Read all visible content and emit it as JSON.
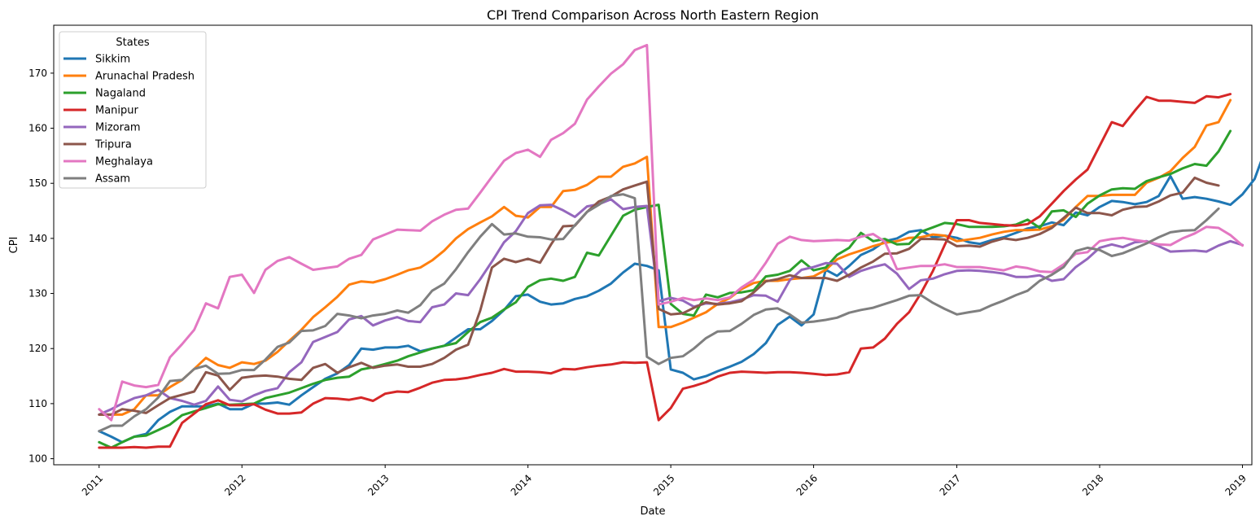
{
  "chart_data": {
    "type": "line",
    "title": "CPI Trend Comparison Across North Eastern Region",
    "xlabel": "Date",
    "ylabel": "CPI",
    "x_start": "2011-01",
    "x_frequency": "monthly",
    "xlim": [
      "2010-09-07",
      "2019-01-25"
    ],
    "ylim": [
      98.9,
      178.7
    ],
    "x_ticks": [
      "2011",
      "2012",
      "2013",
      "2014",
      "2015",
      "2016",
      "2017",
      "2018",
      "2019"
    ],
    "y_ticks": [
      100,
      110,
      120,
      130,
      140,
      150,
      160,
      170
    ],
    "grid": false,
    "legend": {
      "title": "States",
      "placement": "upper-left"
    },
    "series": [
      {
        "name": "Sikkim",
        "color": "#1f77b4",
        "values": [
          105.0,
          104.0,
          103.0,
          104.0,
          104.5,
          107.0,
          108.5,
          109.5,
          109.5,
          109.5,
          110.0,
          109.0,
          109.0,
          110.0,
          110.0,
          110.2,
          109.8,
          111.5,
          113.0,
          114.5,
          115.5,
          117.0,
          120.0,
          119.8,
          120.2,
          120.2,
          120.5,
          119.5,
          120.0,
          120.5,
          122.0,
          123.5,
          123.5,
          125.0,
          127.0,
          129.5,
          129.8,
          128.5,
          128.0,
          128.2,
          129.0,
          129.5,
          130.5,
          131.8,
          133.8,
          135.4,
          135.0,
          134.2,
          116.2,
          115.6,
          114.4,
          115.0,
          115.9,
          116.7,
          117.6,
          119.0,
          121.0,
          124.3,
          125.8,
          124.2,
          126.2,
          134.3,
          133.2,
          135.0,
          137.0,
          138.0,
          139.5,
          140.0,
          141.2,
          141.5,
          140.2,
          140.5,
          140.1,
          139.3,
          139.0,
          139.7,
          140.2,
          141.0,
          141.8,
          142.2,
          142.9,
          142.4,
          144.7,
          144.2,
          145.7,
          146.8,
          146.6,
          146.2,
          146.6,
          147.7,
          151.3,
          147.2,
          147.5,
          147.2,
          146.7,
          146.1,
          148.0,
          150.8,
          156.2
        ]
      },
      {
        "name": "Arunachal Pradesh",
        "color": "#ff7f0e",
        "values": [
          108.0,
          108.0,
          108.0,
          109.0,
          111.5,
          111.5,
          113.0,
          114.3,
          116.3,
          118.3,
          117.0,
          116.5,
          117.5,
          117.2,
          117.8,
          119.4,
          121.4,
          123.4,
          125.7,
          127.5,
          129.4,
          131.6,
          132.2,
          132.0,
          132.6,
          133.4,
          134.2,
          134.7,
          136.0,
          137.8,
          140.0,
          141.7,
          142.9,
          144.0,
          145.7,
          144.1,
          143.8,
          145.7,
          145.7,
          148.6,
          148.8,
          149.7,
          151.2,
          151.2,
          153.0,
          153.6,
          154.8,
          123.9,
          123.9,
          124.7,
          125.6,
          126.6,
          128.1,
          129.2,
          130.8,
          131.9,
          132.3,
          132.3,
          132.6,
          132.8,
          133.1,
          134.3,
          136.2,
          137.1,
          137.8,
          138.6,
          139.2,
          139.5,
          140.1,
          140.2,
          140.7,
          140.5,
          139.5,
          139.8,
          140.1,
          140.7,
          141.2,
          141.5,
          141.5,
          141.6,
          142.2,
          143.4,
          145.7,
          147.7,
          147.7,
          147.9,
          147.9,
          147.9,
          150.1,
          151.0,
          152.2,
          154.6,
          156.6,
          160.5,
          161.1,
          165.1
        ]
      },
      {
        "name": "Nagaland",
        "color": "#2ca02c",
        "values": [
          103.0,
          102.0,
          103.0,
          104.0,
          104.2,
          105.2,
          106.2,
          107.9,
          108.6,
          109.2,
          109.9,
          109.8,
          109.9,
          110.0,
          111.0,
          111.5,
          112.0,
          112.8,
          113.6,
          114.3,
          114.7,
          114.9,
          116.2,
          116.6,
          117.2,
          117.8,
          118.6,
          119.3,
          120.0,
          120.5,
          121.0,
          123.0,
          124.8,
          125.6,
          127.1,
          128.4,
          131.2,
          132.4,
          132.7,
          132.3,
          133.0,
          137.4,
          136.9,
          140.5,
          144.1,
          145.2,
          145.7,
          146.1,
          128.1,
          126.3,
          126.0,
          129.8,
          129.3,
          130.1,
          130.2,
          130.6,
          133.1,
          133.4,
          134.1,
          136.0,
          134.2,
          134.7,
          137.0,
          138.3,
          141.0,
          139.5,
          139.9,
          138.9,
          139.0,
          141.2,
          142.0,
          142.8,
          142.6,
          142.1,
          142.1,
          142.1,
          142.2,
          142.5,
          143.4,
          141.9,
          144.9,
          145.1,
          143.9,
          146.3,
          147.8,
          148.9,
          149.1,
          149.0,
          150.4,
          151.1,
          151.7,
          152.7,
          153.5,
          153.2,
          155.8,
          159.5
        ]
      },
      {
        "name": "Manipur",
        "color": "#d62728",
        "values": [
          102.0,
          102.0,
          102.0,
          102.1,
          102.0,
          102.2,
          102.2,
          106.5,
          108.2,
          109.9,
          110.6,
          109.7,
          109.7,
          109.9,
          108.9,
          108.2,
          108.2,
          108.4,
          110.0,
          111.0,
          110.9,
          110.7,
          111.1,
          110.5,
          111.8,
          112.2,
          112.1,
          112.9,
          113.8,
          114.3,
          114.4,
          114.7,
          115.2,
          115.6,
          116.3,
          115.8,
          115.8,
          115.7,
          115.5,
          116.3,
          116.2,
          116.6,
          116.9,
          117.1,
          117.5,
          117.4,
          117.5,
          107.0,
          109.2,
          112.7,
          113.2,
          113.9,
          114.9,
          115.6,
          115.8,
          115.7,
          115.6,
          115.7,
          115.7,
          115.6,
          115.4,
          115.2,
          115.3,
          115.7,
          120.0,
          120.2,
          121.8,
          124.5,
          126.6,
          130.0,
          134.1,
          138.8,
          143.3,
          143.3,
          142.8,
          142.6,
          142.4,
          142.3,
          142.6,
          144.0,
          146.3,
          148.6,
          150.7,
          152.5,
          156.8,
          161.1,
          160.4,
          163.2,
          165.7,
          165.0,
          165.0,
          164.8,
          164.6,
          165.8,
          165.6,
          166.2
        ]
      },
      {
        "name": "Mizoram",
        "color": "#9467bd",
        "values": [
          108.0,
          109.0,
          110.0,
          111.0,
          111.5,
          112.5,
          111.0,
          110.5,
          109.8,
          110.5,
          113.1,
          110.7,
          110.4,
          111.5,
          112.3,
          112.8,
          115.7,
          117.5,
          121.2,
          122.1,
          123.0,
          125.3,
          125.9,
          124.2,
          125.1,
          125.7,
          125.0,
          124.8,
          127.5,
          128.0,
          130.0,
          129.7,
          132.6,
          135.8,
          139.3,
          141.3,
          144.6,
          146.0,
          146.1,
          145.1,
          143.9,
          145.8,
          146.2,
          147.1,
          145.3,
          145.7,
          145.9,
          128.6,
          129.2,
          128.7,
          127.6,
          128.2,
          128.1,
          128.4,
          128.9,
          129.7,
          129.6,
          128.5,
          132.4,
          134.3,
          134.8,
          135.5,
          135.4,
          133.0,
          134.1,
          134.8,
          135.3,
          133.6,
          130.8,
          132.4,
          132.7,
          133.5,
          134.1,
          134.2,
          134.1,
          133.9,
          133.6,
          133.0,
          133.0,
          133.3,
          132.3,
          132.6,
          134.8,
          136.3,
          138.3,
          138.9,
          138.4,
          139.3,
          139.5,
          138.6,
          137.6,
          137.7,
          137.8,
          137.6,
          138.7,
          139.5,
          138.8
        ]
      },
      {
        "name": "Tripura",
        "color": "#8c564b",
        "values": [
          108.0,
          108.0,
          109.0,
          108.7,
          108.3,
          109.7,
          111.0,
          111.6,
          112.2,
          115.7,
          115.1,
          112.5,
          114.7,
          115.0,
          115.1,
          114.9,
          114.5,
          114.3,
          116.5,
          117.2,
          115.6,
          116.6,
          117.4,
          116.5,
          116.9,
          117.1,
          116.7,
          116.7,
          117.2,
          118.3,
          119.8,
          120.7,
          126.9,
          134.7,
          136.3,
          135.7,
          136.3,
          135.6,
          138.9,
          142.2,
          142.3,
          144.8,
          146.7,
          147.6,
          148.9,
          149.6,
          150.3,
          127.2,
          126.2,
          126.4,
          127.4,
          128.4,
          128.0,
          128.2,
          128.6,
          130.2,
          132.2,
          132.6,
          133.3,
          132.8,
          132.8,
          132.8,
          132.3,
          133.4,
          134.7,
          135.8,
          137.2,
          137.3,
          138.1,
          139.9,
          139.9,
          139.8,
          138.6,
          138.7,
          138.5,
          139.4,
          140.0,
          139.7,
          140.1,
          140.8,
          141.9,
          143.7,
          145.6,
          144.6,
          144.6,
          144.2,
          145.2,
          145.7,
          145.8,
          146.7,
          147.8,
          148.3,
          151.0,
          150.1,
          149.6
        ]
      },
      {
        "name": "Meghalaya",
        "color": "#e377c2",
        "values": [
          109.0,
          107.0,
          114.0,
          113.3,
          113.0,
          113.4,
          118.4,
          120.8,
          123.4,
          128.2,
          127.3,
          133.0,
          133.4,
          130.1,
          134.3,
          135.9,
          136.6,
          135.4,
          134.3,
          134.6,
          134.9,
          136.3,
          137.0,
          139.8,
          140.7,
          141.6,
          141.5,
          141.4,
          143.1,
          144.3,
          145.2,
          145.4,
          148.3,
          151.2,
          154.1,
          155.5,
          156.1,
          154.8,
          157.9,
          159.1,
          160.8,
          165.2,
          167.6,
          169.9,
          171.6,
          174.2,
          175.1,
          128.0,
          128.5,
          129.2,
          128.8,
          129.1,
          128.8,
          129.3,
          131.1,
          132.5,
          135.6,
          139.0,
          140.3,
          139.7,
          139.5,
          139.6,
          139.7,
          139.6,
          140.3,
          140.8,
          139.4,
          134.4,
          134.7,
          135.0,
          135.0,
          135.3,
          134.8,
          134.8,
          134.8,
          134.5,
          134.2,
          134.9,
          134.6,
          134.0,
          133.9,
          135.3,
          137.2,
          137.5,
          139.5,
          139.9,
          140.1,
          139.7,
          139.4,
          138.9,
          138.8,
          140.0,
          140.9,
          142.1,
          141.9,
          140.6,
          138.7
        ]
      },
      {
        "name": "Assam",
        "color": "#7f7f7f",
        "values": [
          105.0,
          106.0,
          106.0,
          107.7,
          109.0,
          111.1,
          114.1,
          114.3,
          116.3,
          116.9,
          115.4,
          115.5,
          116.1,
          116.1,
          118.0,
          120.3,
          121.1,
          123.2,
          123.3,
          124.1,
          126.3,
          126.0,
          125.5,
          126.0,
          126.3,
          126.9,
          126.5,
          127.9,
          130.5,
          131.8,
          134.4,
          137.5,
          140.3,
          142.6,
          140.7,
          140.9,
          140.3,
          140.2,
          139.8,
          139.9,
          142.4,
          144.8,
          146.1,
          147.7,
          148.0,
          147.3,
          118.5,
          117.2,
          118.3,
          118.6,
          120.0,
          121.9,
          123.1,
          123.2,
          124.5,
          126.1,
          127.1,
          127.3,
          126.2,
          124.7,
          124.9,
          125.2,
          125.6,
          126.5,
          127.0,
          127.4,
          128.1,
          128.8,
          129.6,
          129.7,
          128.3,
          127.2,
          126.2,
          126.6,
          126.9,
          127.9,
          128.7,
          129.7,
          130.5,
          132.3,
          133.4,
          134.8,
          137.7,
          138.3,
          137.9,
          136.8,
          137.3,
          138.2,
          139.1,
          140.2,
          141.1,
          141.4,
          141.5,
          143.3,
          145.4
        ]
      }
    ]
  }
}
